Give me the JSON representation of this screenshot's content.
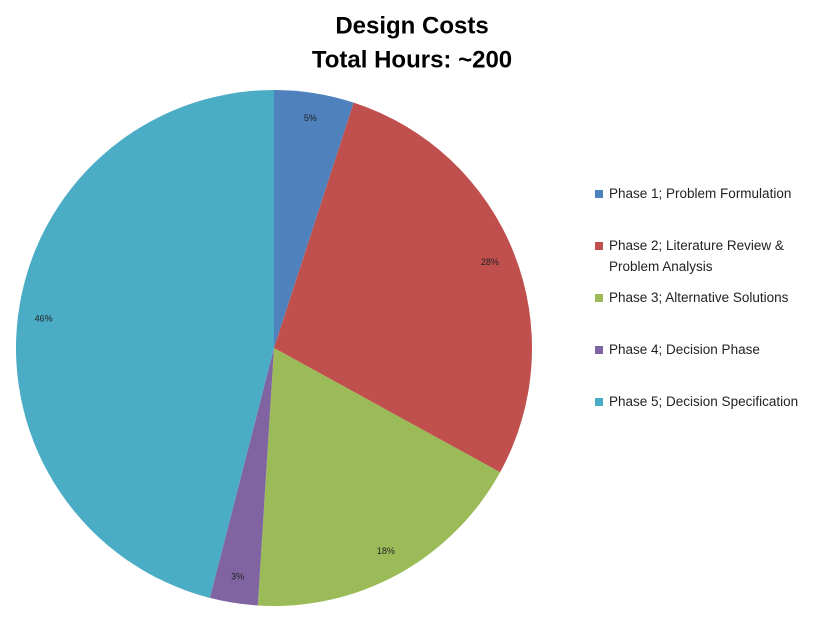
{
  "chart_data": {
    "type": "pie",
    "title": "Design Costs",
    "subtitle": "Total Hours: ~200",
    "categories": [
      "Phase 1; Problem Formulation",
      "Phase 2; Literature Review & Problem Analysis",
      "Phase 3; Alternative Solutions",
      "Phase 4; Decision Phase",
      "Phase 5; Decision Specification"
    ],
    "values": [
      5,
      28,
      18,
      3,
      46
    ],
    "value_labels": [
      "5%",
      "28%",
      "18%",
      "3%",
      "46%"
    ],
    "colors": [
      "#4f81bd",
      "#c0504d",
      "#9bbb59",
      "#8064a2",
      "#4bacc6"
    ],
    "legend": "right"
  }
}
